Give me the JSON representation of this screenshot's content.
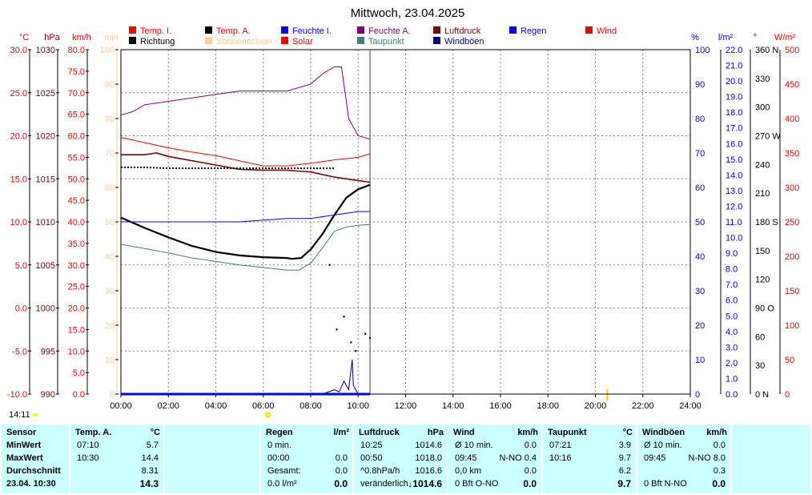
{
  "title": "Mittwoch, 23.04.2025",
  "legend": [
    {
      "label": "Temp. I.",
      "color": "#ff0000"
    },
    {
      "label": "Temp. A.",
      "color": "#000000"
    },
    {
      "label": "Feuchte I.",
      "color": "#0000ff"
    },
    {
      "label": "Feuchte A.",
      "color": "#800080"
    },
    {
      "label": "Luftdruck",
      "color": "#800000"
    },
    {
      "label": "Regen",
      "color": "#0000ff"
    },
    {
      "label": "Wind",
      "color": "#ff0000"
    },
    {
      "label": "Richtung",
      "color": "#000000"
    },
    {
      "label": "Sonnenschein",
      "color": "#ffcc99"
    },
    {
      "label": "Solar",
      "color": "#ff0000"
    },
    {
      "label": "Taupunkt",
      "color": "#408080"
    },
    {
      "label": "Windböen",
      "color": "#000080"
    }
  ],
  "left_axes": [
    {
      "unit": "°C",
      "color": "#ff0000",
      "ticks": [
        "30.0",
        "25.0",
        "20.0",
        "15.0",
        "10.0",
        "5.0",
        "0.0",
        "-5.0",
        "-10.0"
      ]
    },
    {
      "unit": "hPa",
      "color": "#800000",
      "ticks": [
        "1030",
        "1025",
        "1020",
        "1015",
        "1010",
        "1005",
        "1000",
        "995",
        "990"
      ]
    },
    {
      "unit": "km/h",
      "color": "#ff0000",
      "ticks": [
        "80.0",
        "75.0",
        "70.0",
        "65.0",
        "60.0",
        "55.0",
        "50.0",
        "45.0",
        "40.0",
        "35.0",
        "30.0",
        "25.0",
        "20.0",
        "15.0",
        "10.0",
        "5.0",
        "0.0"
      ]
    },
    {
      "unit": "min",
      "color": "#ffcc99",
      "ticks": [
        "100",
        "90",
        "80",
        "70",
        "60",
        "50",
        "40",
        "30",
        "20",
        "10",
        "0"
      ]
    }
  ],
  "right_axes": [
    {
      "unit": "%",
      "color": "#0000ff",
      "ticks": [
        "100",
        "90",
        "80",
        "70",
        "60",
        "50",
        "40",
        "30",
        "20",
        "10",
        "0"
      ]
    },
    {
      "unit": "l/m²",
      "color": "#0000ff",
      "ticks": [
        "22.0",
        "21.0",
        "20.0",
        "19.0",
        "18.0",
        "17.0",
        "16.0",
        "15.0",
        "14.0",
        "13.0",
        "12.0",
        "11.0",
        "10.0",
        "9.0",
        "8.0",
        "7.0",
        "6.0",
        "5.0",
        "4.0",
        "3.0",
        "2.0",
        "1.0",
        "0.0"
      ]
    },
    {
      "unit": "°",
      "color": "#000000",
      "ticks": [
        "360 N",
        "330",
        "300",
        "270 W",
        "240",
        "210",
        "180 S",
        "150",
        "120",
        "90  O",
        "60",
        "30",
        "0   N"
      ]
    },
    {
      "unit": "W/m²",
      "color": "#ff0000",
      "ticks": [
        "500",
        "450",
        "400",
        "350",
        "300",
        "250",
        "200",
        "150",
        "100",
        "50",
        "0"
      ]
    }
  ],
  "x_ticks": [
    "00:00",
    "02:00",
    "04:00",
    "06:00",
    "08:00",
    "10:00",
    "12:00",
    "14:00",
    "16:00",
    "18:00",
    "20:00",
    "22:00",
    "24:00"
  ],
  "sunrise_label": "14:11",
  "chart_data": {
    "type": "line",
    "title": "Mittwoch, 23.04.2025",
    "x_unit": "hours",
    "xlim": [
      0,
      24
    ],
    "current_time": 10.5,
    "series": [
      {
        "name": "Feuchte A.",
        "unit": "%",
        "color": "#800080",
        "x": [
          0,
          0.5,
          1,
          2,
          3,
          4,
          5,
          6,
          7,
          8,
          8.5,
          9,
          9.3,
          9.6,
          10,
          10.5
        ],
        "values": [
          81,
          82,
          84,
          85,
          86,
          87,
          88,
          88,
          88,
          90,
          93,
          95,
          95,
          80,
          75,
          74
        ]
      },
      {
        "name": "Temp. I.",
        "unit": "°C",
        "color": "#ff0000",
        "x": [
          0,
          1,
          2,
          3,
          4,
          5,
          6,
          7,
          8,
          9,
          10,
          10.5
        ],
        "values": [
          19.8,
          19.2,
          18.6,
          18.1,
          17.7,
          17.1,
          16.5,
          16.5,
          16.8,
          17.2,
          17.5,
          17.9
        ]
      },
      {
        "name": "Luftdruck",
        "unit": "hPa",
        "color": "#800000",
        "x": [
          0,
          1,
          1.5,
          2,
          3,
          4,
          5,
          6,
          7,
          8,
          9,
          10,
          10.5
        ],
        "values": [
          1017.8,
          1017.8,
          1018.0,
          1017.6,
          1017.1,
          1016.6,
          1016.1,
          1016.0,
          1016.0,
          1015.8,
          1015.2,
          1014.8,
          1014.6
        ]
      },
      {
        "name": "Richtung",
        "unit": "°",
        "color": "#000000",
        "style": "dotted",
        "x": [
          0,
          1,
          2,
          3,
          4,
          5,
          6,
          7,
          8,
          9
        ],
        "values": [
          237,
          237,
          236,
          236,
          236,
          236,
          236,
          236,
          236,
          236
        ]
      },
      {
        "name": "Temp. A.",
        "unit": "°C",
        "color": "#000000",
        "x": [
          0,
          1,
          2,
          3,
          4,
          5,
          6,
          7,
          7.2,
          7.6,
          8,
          8.5,
          9,
          9.5,
          10,
          10.5
        ],
        "values": [
          10.5,
          9.3,
          8.2,
          7.2,
          6.5,
          6.1,
          5.9,
          5.8,
          5.7,
          5.8,
          6.8,
          8.6,
          10.8,
          12.8,
          13.8,
          14.3
        ]
      },
      {
        "name": "Feuchte I.",
        "unit": "%",
        "color": "#0000ff",
        "x": [
          0,
          1,
          3,
          5,
          7,
          8,
          9,
          10,
          10.5
        ],
        "values": [
          50,
          50,
          50,
          50,
          51,
          51,
          52,
          53,
          53
        ]
      },
      {
        "name": "Taupunkt",
        "unit": "°C",
        "color": "#408080",
        "x": [
          0,
          1,
          2,
          3,
          4,
          5,
          6,
          7,
          7.5,
          8,
          8.5,
          9,
          9.5,
          10,
          10.5
        ],
        "values": [
          7.4,
          6.9,
          6.4,
          5.8,
          5.4,
          5.0,
          4.7,
          4.4,
          4.4,
          5.2,
          7.0,
          8.9,
          9.4,
          9.6,
          9.7
        ]
      },
      {
        "name": "Windböen",
        "unit": "km/h",
        "color": "#000080",
        "x": [
          0,
          8,
          8.5,
          9,
          9.2,
          9.4,
          9.6,
          9.75,
          9.8,
          10,
          10.5
        ],
        "values": [
          0,
          0,
          0,
          1,
          0.5,
          3,
          1,
          8,
          2,
          0,
          0
        ]
      },
      {
        "name": "Regen",
        "unit": "l/m²",
        "color": "#0000ff",
        "x": [
          0,
          10.5
        ],
        "values": [
          0,
          0
        ]
      }
    ],
    "wind_points": {
      "x": [
        8.8,
        9.1,
        9.4,
        9.7,
        9.9,
        10.3,
        10.5
      ],
      "values": [
        30,
        15,
        18,
        12,
        10,
        14,
        13
      ]
    }
  },
  "table": {
    "sensor": {
      "h": "Sensor",
      "rows": [
        "MinWert",
        "MaxWert",
        "Durchschnitt",
        "23.04. 10:30"
      ]
    },
    "temp": {
      "h": "Temp. A.",
      "u": "°C",
      "rows": [
        [
          "07:10",
          "5.7"
        ],
        [
          "10:30",
          "14.4"
        ],
        [
          "",
          "8.31"
        ],
        [
          "",
          "14.3"
        ]
      ]
    },
    "regen": {
      "h": "Regen",
      "u": "l/m²",
      "rows": [
        [
          "0 min.",
          ""
        ],
        [
          "00:00",
          "0.0"
        ],
        [
          "Gesamt:",
          "0.0"
        ],
        [
          "0.0 l/m²",
          "0.0"
        ]
      ]
    },
    "luftdruck": {
      "h": "Luftdruck",
      "u": "hPa",
      "rows": [
        [
          "10:25",
          "1014.6"
        ],
        [
          "00:50",
          "1018.0"
        ],
        [
          "^0.8hPa/h",
          "1016.6"
        ],
        [
          "veränderlich",
          "↓1014.6"
        ]
      ]
    },
    "wind": {
      "h": "Wind",
      "u": "km/h",
      "rows": [
        [
          "Ø 10 min.",
          "0.0"
        ],
        [
          "09:45",
          "N-NO 0.4"
        ],
        [
          "0,0 km",
          "0.0"
        ],
        [
          "0 Bft O-NO",
          "0.0"
        ]
      ]
    },
    "taupunkt": {
      "h": "Taupunkt",
      "u": "°C",
      "rows": [
        [
          "07:21",
          "3.9"
        ],
        [
          "10:16",
          "9.7"
        ],
        [
          "",
          "6.2"
        ],
        [
          "",
          "9.7"
        ]
      ]
    },
    "boeen": {
      "h": "Windböen",
      "u": "km/h",
      "rows": [
        [
          "Ø 10 min.",
          "0.0"
        ],
        [
          "09:45",
          "N-NO 8.0"
        ],
        [
          "",
          "0.3"
        ],
        [
          "0 Bft N-NO",
          "0.0"
        ]
      ]
    }
  }
}
